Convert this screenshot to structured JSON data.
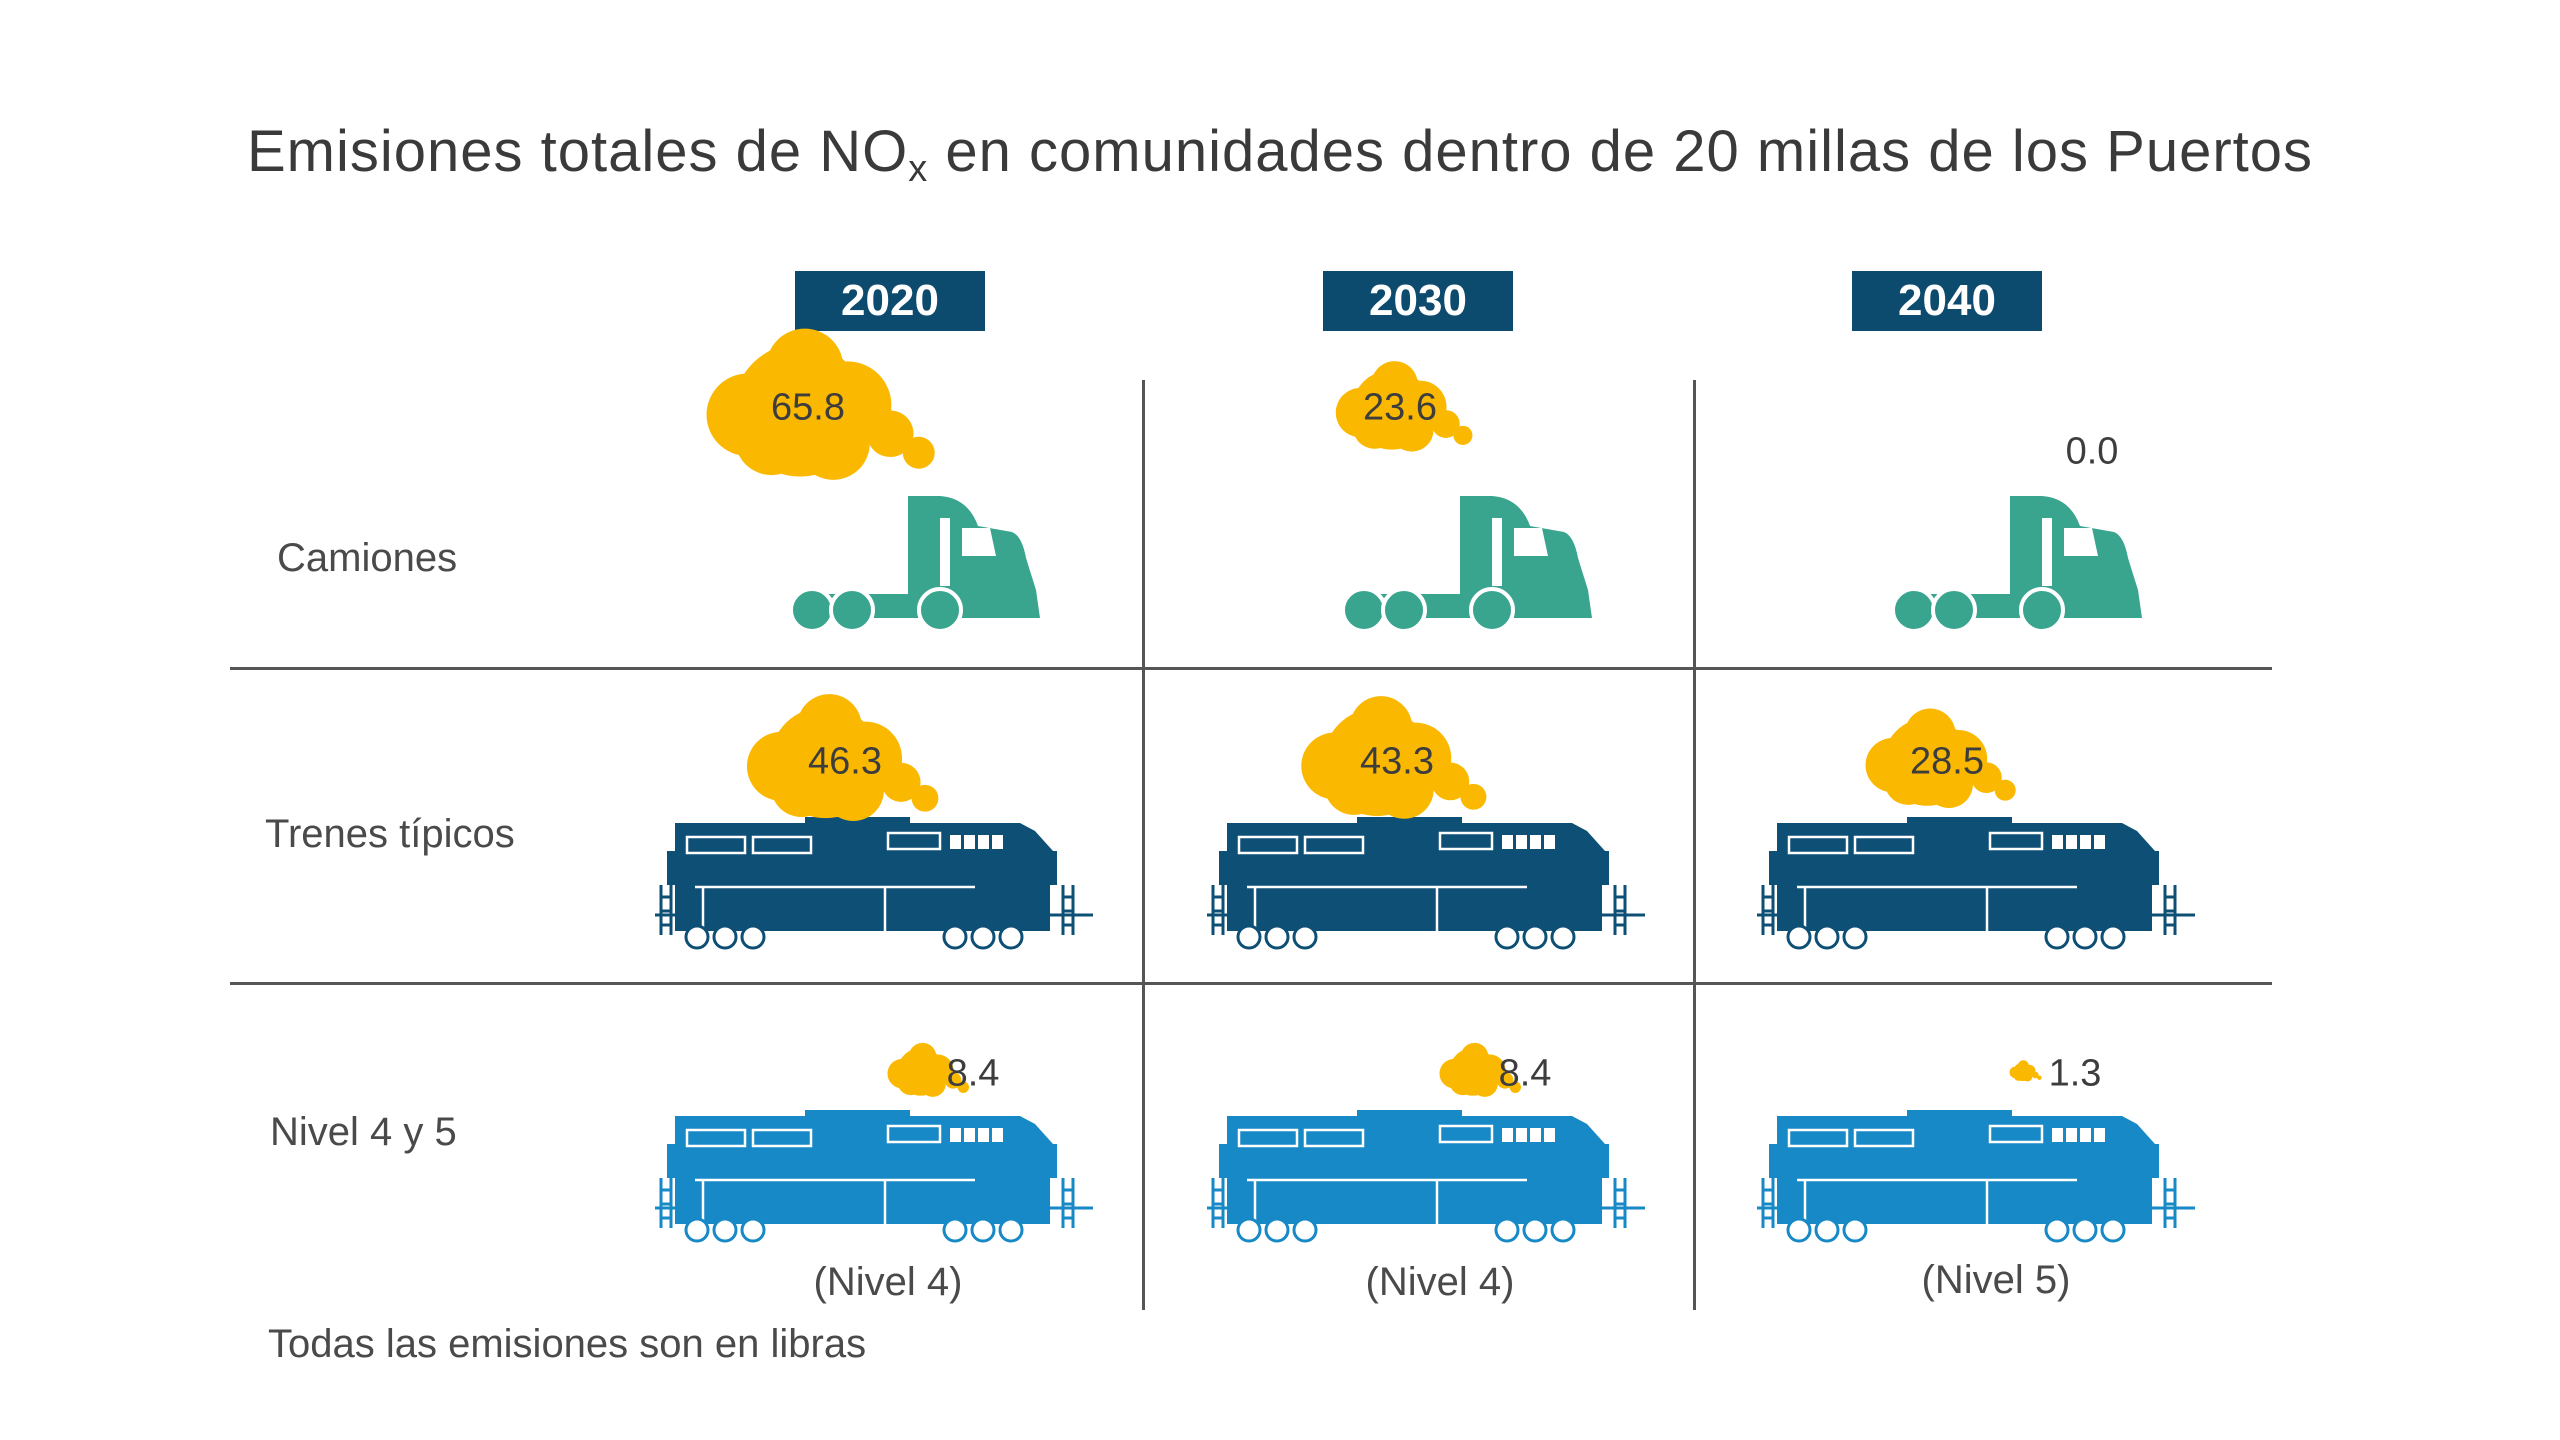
{
  "title": {
    "prefix": "Emisiones totales de NO",
    "subscript": "x",
    "suffix": " en comunidades dentro de 20 millas de los Puertos"
  },
  "years": [
    "2020",
    "2030",
    "2040"
  ],
  "rows": {
    "trucks": "Camiones",
    "trains": "Trenes típicos",
    "tier": "Nivel 4 y 5"
  },
  "tier_levels": [
    "(Nivel 4)",
    "(Nivel 4)",
    "(Nivel 5)"
  ],
  "footnote": "Todas las emisiones son en libras",
  "colors": {
    "badge": "#0c4a6e",
    "truck": "#3aa58f",
    "train_typical": "#0e4f75",
    "train_tier": "#1789c6",
    "cloud": "#fbb800"
  },
  "chart_data": {
    "type": "table",
    "title": "Emisiones totales de NOx en comunidades dentro de 20 millas de los Puertos",
    "columns": [
      "2020",
      "2030",
      "2040"
    ],
    "series": [
      {
        "name": "Camiones",
        "values": [
          65.8,
          23.6,
          0.0
        ],
        "labels": [
          "65.8",
          "23.6",
          "0.0"
        ]
      },
      {
        "name": "Trenes típicos",
        "values": [
          46.3,
          43.3,
          28.5
        ],
        "labels": [
          "46.3",
          "43.3",
          "28.5"
        ]
      },
      {
        "name": "Nivel 4 y 5",
        "values": [
          8.4,
          8.4,
          1.3
        ],
        "labels": [
          "8.4",
          "8.4",
          "1.3"
        ]
      }
    ],
    "units": "libras"
  }
}
